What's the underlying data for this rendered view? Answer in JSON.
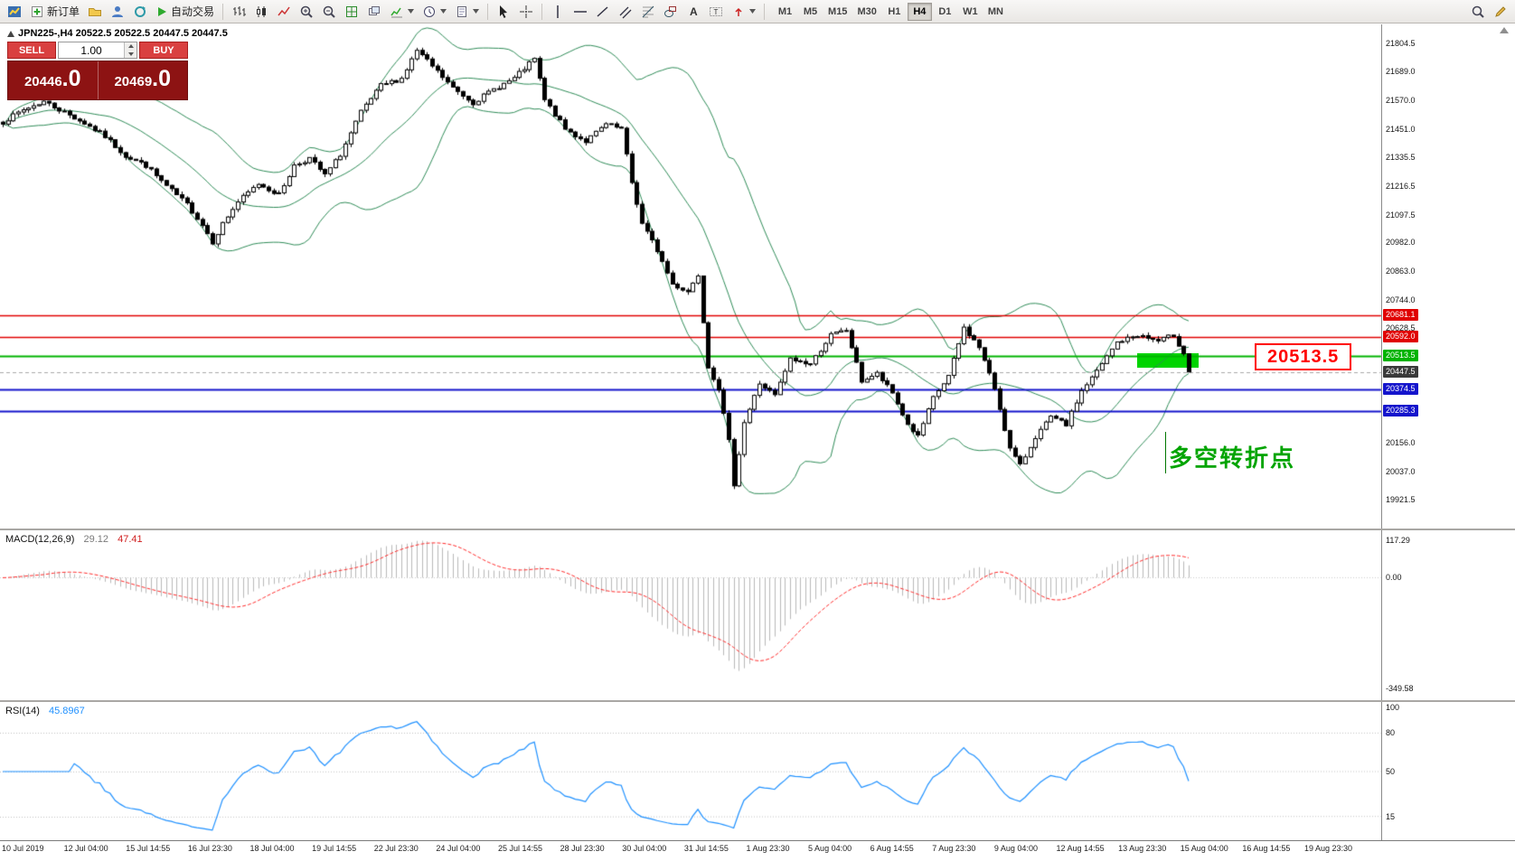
{
  "toolbar": {
    "new_order": "新订单",
    "auto_trading": "自动交易",
    "timeframes": [
      "M1",
      "M5",
      "M15",
      "M30",
      "H1",
      "H4",
      "D1",
      "W1",
      "MN"
    ],
    "active_timeframe": "H4"
  },
  "trade_panel": {
    "sell_label": "SELL",
    "buy_label": "BUY",
    "volume": "1.00",
    "sell_price": {
      "main": "20446",
      "big": ".0"
    },
    "buy_price": {
      "main": "20469",
      "big": ".0"
    }
  },
  "chart": {
    "title": "JPN225-,H4 20522.5 20522.5 20447.5 20447.5"
  },
  "chart_data": {
    "type": "candlestick",
    "symbol": "JPN225-",
    "period": "H4",
    "current_bar": {
      "open": 20522.5,
      "high": 20522.5,
      "low": 20447.5,
      "close": 20447.5
    },
    "bars": 233,
    "price_axis": {
      "max": 21883,
      "min": 19801,
      "ticks": [
        "21804.5",
        "21689.0",
        "21570.0",
        "21451.0",
        "21335.5",
        "21216.5",
        "21097.5",
        "20982.0",
        "20863.0",
        "20744.0",
        "20628.5",
        "20156.0",
        "20037.0",
        "19921.5"
      ]
    },
    "price_lines": [
      {
        "price": 20681.1,
        "label": "20681.1",
        "color": "#e00000",
        "width": 1.4
      },
      {
        "price": 20592.0,
        "label": "20592.0",
        "color": "#e00000",
        "width": 1.4
      },
      {
        "price": 20513.5,
        "label": "20513.5",
        "color": "#00b300",
        "width": 2
      },
      {
        "price": 20447.5,
        "label": "20447.5",
        "color": "#3a3a3a",
        "width": 1,
        "current": true
      },
      {
        "price": 20374.5,
        "label": "20374.5",
        "color": "#1414cc",
        "width": 2
      },
      {
        "price": 20285.3,
        "label": "20285.3",
        "color": "#1414cc",
        "width": 2
      }
    ],
    "highlight_box": {
      "price": 20513.5,
      "label": "20513.5",
      "color": "#00d400"
    },
    "note": {
      "text": "多空转折点",
      "color": "#00a400"
    },
    "candles_anchor_closes": [
      [
        0,
        21480
      ],
      [
        4,
        21530
      ],
      [
        8,
        21565
      ],
      [
        12,
        21520
      ],
      [
        16,
        21475
      ],
      [
        20,
        21420
      ],
      [
        24,
        21340
      ],
      [
        28,
        21300
      ],
      [
        32,
        21215
      ],
      [
        36,
        21140
      ],
      [
        39,
        21055
      ],
      [
        41,
        20985
      ],
      [
        43,
        21060
      ],
      [
        46,
        21150
      ],
      [
        50,
        21225
      ],
      [
        54,
        21180
      ],
      [
        57,
        21300
      ],
      [
        60,
        21330
      ],
      [
        63,
        21260
      ],
      [
        66,
        21345
      ],
      [
        70,
        21520
      ],
      [
        74,
        21630
      ],
      [
        78,
        21660
      ],
      [
        81,
        21775
      ],
      [
        84,
        21710
      ],
      [
        88,
        21620
      ],
      [
        92,
        21560
      ],
      [
        96,
        21615
      ],
      [
        100,
        21660
      ],
      [
        104,
        21740
      ],
      [
        106,
        21570
      ],
      [
        110,
        21450
      ],
      [
        114,
        21400
      ],
      [
        118,
        21470
      ],
      [
        121,
        21450
      ],
      [
        123,
        21230
      ],
      [
        125,
        21060
      ],
      [
        128,
        20950
      ],
      [
        131,
        20810
      ],
      [
        134,
        20780
      ],
      [
        136,
        20850
      ],
      [
        138,
        20470
      ],
      [
        140,
        20380
      ],
      [
        142,
        20160
      ],
      [
        143,
        19985
      ],
      [
        145,
        20240
      ],
      [
        148,
        20400
      ],
      [
        151,
        20350
      ],
      [
        154,
        20500
      ],
      [
        158,
        20480
      ],
      [
        162,
        20600
      ],
      [
        165,
        20620
      ],
      [
        168,
        20410
      ],
      [
        171,
        20440
      ],
      [
        174,
        20360
      ],
      [
        177,
        20230
      ],
      [
        179,
        20180
      ],
      [
        182,
        20340
      ],
      [
        185,
        20430
      ],
      [
        188,
        20630
      ],
      [
        191,
        20550
      ],
      [
        194,
        20380
      ],
      [
        197,
        20130
      ],
      [
        199,
        20060
      ],
      [
        202,
        20180
      ],
      [
        205,
        20260
      ],
      [
        208,
        20230
      ],
      [
        211,
        20370
      ],
      [
        214,
        20450
      ],
      [
        218,
        20570
      ],
      [
        222,
        20600
      ],
      [
        226,
        20575
      ],
      [
        229,
        20600
      ],
      [
        231,
        20522.5
      ],
      [
        232,
        20447.5
      ]
    ],
    "indicators": {
      "bollinger": {
        "period": 20,
        "deviation": 2,
        "color": "#2e8b57"
      },
      "macd": {
        "name": "MACD(12,26,9)",
        "value_main": "29.12",
        "value_signal": "47.41",
        "axis_labels": [
          "117.29",
          "0.00",
          "-349.58"
        ],
        "axis_values": [
          117.29,
          0,
          -349.58
        ],
        "histogram_color": "#b9b9b9",
        "signal_color": "#ff2a2a"
      },
      "rsi": {
        "name": "RSI(14)",
        "value": "45.8967",
        "axis_labels": [
          "100",
          "80",
          "50",
          "15"
        ],
        "axis_values": [
          100,
          80,
          50,
          15
        ],
        "levels": [
          80,
          50,
          15
        ],
        "line_color": "#1e90ff"
      }
    },
    "time_axis": [
      "10 Jul 2019",
      "12 Jul 04:00",
      "15 Jul 14:55",
      "16 Jul 23:30",
      "18 Jul 04:00",
      "19 Jul 14:55",
      "22 Jul 23:30",
      "24 Jul 04:00",
      "25 Jul 14:55",
      "28 Jul 23:30",
      "30 Jul 04:00",
      "31 Jul 14:55",
      "1 Aug 23:30",
      "5 Aug 04:00",
      "6 Aug 14:55",
      "7 Aug 23:30",
      "9 Aug 04:00",
      "12 Aug 14:55",
      "13 Aug 23:30",
      "15 Aug 04:00",
      "16 Aug 14:55",
      "19 Aug 23:30"
    ]
  }
}
